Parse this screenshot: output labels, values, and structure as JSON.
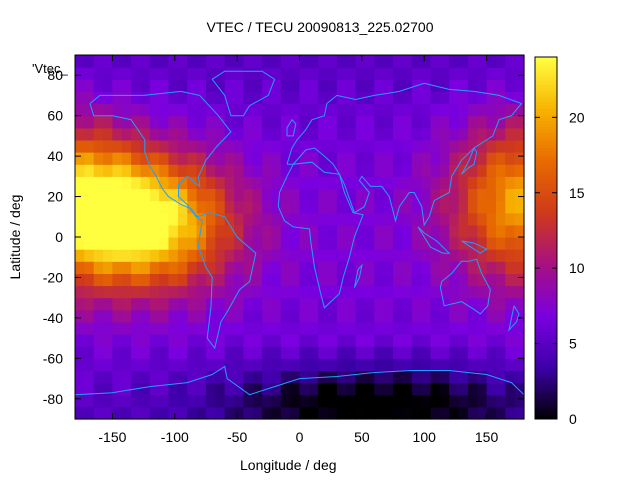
{
  "title": "VTEC / TECU 20090813_225.02700",
  "chart_data": {
    "type": "heatmap",
    "title": "VTEC / TECU 20090813_225.02700",
    "xlabel": "Longitude / deg",
    "ylabel": "Latitude / deg",
    "map_label": "'Vtec_",
    "xlim": [
      -180,
      180
    ],
    "ylim": [
      -90,
      90
    ],
    "xticks": [
      -150,
      -100,
      -50,
      0,
      50,
      100,
      150
    ],
    "yticks": [
      -80,
      -60,
      -40,
      -20,
      0,
      20,
      40,
      60,
      80
    ],
    "colorbar": {
      "range": [
        0,
        24
      ],
      "ticks": [
        0,
        5,
        10,
        15,
        20
      ],
      "palette": [
        "#000000",
        "#3d00a8",
        "#7a00e0",
        "#a71080",
        "#cf3a1a",
        "#e86b00",
        "#f7b400",
        "#ffff40"
      ]
    },
    "features": [
      {
        "name": "primary peak",
        "lon": -120,
        "lat": 8,
        "value": 24
      },
      {
        "name": "secondary peak",
        "lon": 178,
        "lat": 18,
        "value": 20
      },
      {
        "name": "southern trough",
        "lon": 60,
        "lat": -82,
        "value": 1
      }
    ],
    "background_level": 7,
    "grid": false
  },
  "colors": {
    "coastline": "#1fa0ff",
    "axis": "#000000",
    "background": "#ffffff"
  }
}
